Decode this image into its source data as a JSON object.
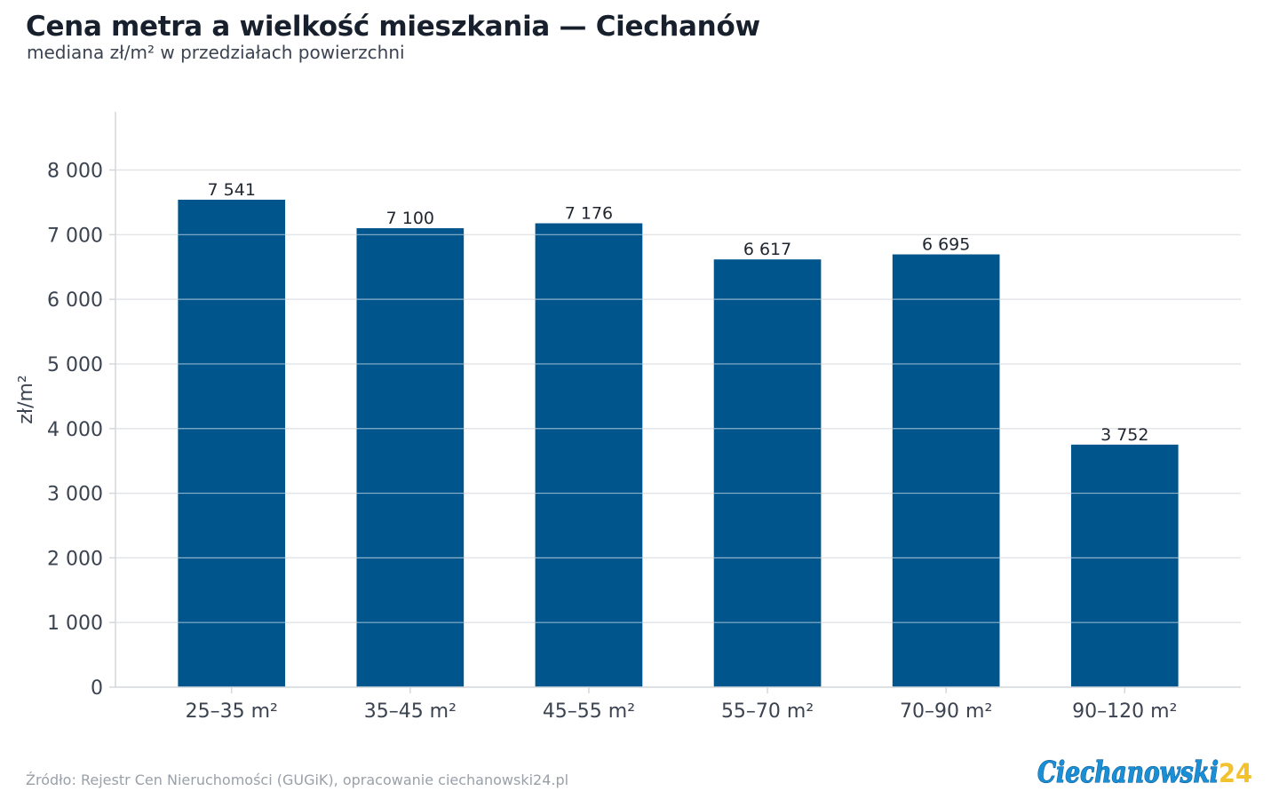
{
  "chart_data": {
    "type": "bar",
    "title": "Cena metra a wielkość mieszkania — Ciechanów",
    "subtitle": "mediana zł/m² w przedziałach powierzchni",
    "xlabel": "",
    "ylabel": "zł/m²",
    "categories": [
      "25–35 m²",
      "35–45 m²",
      "45–55 m²",
      "55–70 m²",
      "70–90 m²",
      "90–120 m²"
    ],
    "values": [
      7541,
      7100,
      7176,
      6617,
      6695,
      3752
    ],
    "value_labels": [
      "7 541",
      "7 100",
      "7 176",
      "6 617",
      "6 695",
      "3 752"
    ],
    "ylim": [
      0,
      8900
    ],
    "yticks": [
      0,
      1000,
      2000,
      3000,
      4000,
      5000,
      6000,
      7000,
      8000
    ],
    "ytick_labels": [
      "0",
      "1 000",
      "2 000",
      "3 000",
      "4 000",
      "5 000",
      "6 000",
      "7 000",
      "8 000"
    ],
    "grid": true,
    "legend": "none",
    "colors": {
      "bar": "#00558c",
      "grid": "#e3e5e8",
      "axis": "#d4d7db",
      "text": "#3b4350"
    }
  },
  "footer": {
    "source": "Źródło: Rejestr Cen Nieruchomości (GUGiK), opracowanie ciechanowski24.pl"
  },
  "logo": {
    "text": "Ciechanowski",
    "number": "24",
    "colors": {
      "main": "#1a8fd6",
      "accent": "#f2c12e"
    }
  }
}
